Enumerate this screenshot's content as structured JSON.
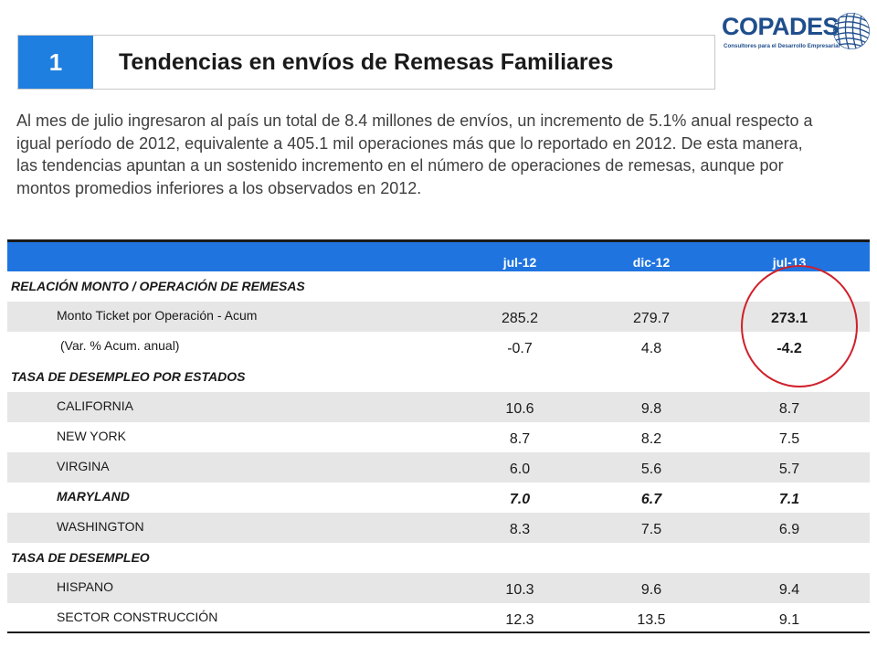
{
  "header": {
    "number": "1",
    "title": "Tendencias en envíos de Remesas Familiares"
  },
  "logo": {
    "name": "COPADES",
    "tagline": "Consultores para el Desarrollo Empresarial",
    "color": "#1f4e8c"
  },
  "intro": "Al mes de julio ingresaron al país un total de 8.4 millones de envíos, un incremento de 5.1% anual respecto a  igual período de 2012, equivalente a 405.1 mil operaciones más que lo reportado en 2012.  De esta manera, las tendencias apuntan a un sostenido incremento en el número de operaciones de remesas, aunque por montos promedios inferiores a los observados en 2012.",
  "table": {
    "columns": [
      "jul-12",
      "dic-12",
      "jul-13"
    ],
    "sections": [
      {
        "title": "RELACIÓN MONTO / OPERACIÓN DE REMESAS",
        "rows": [
          {
            "label": "Monto Ticket por Operación - Acum",
            "values": [
              "285.2",
              "279.7",
              "273.1"
            ]
          },
          {
            "label": " (Var. % Acum. anual)",
            "values": [
              "-0.7",
              "4.8",
              "-4.2"
            ]
          }
        ]
      },
      {
        "title": "TASA DE DESEMPLEO POR ESTADOS",
        "rows": [
          {
            "label": "CALIFORNIA",
            "values": [
              "10.6",
              "9.8",
              "8.7"
            ]
          },
          {
            "label": "NEW YORK",
            "values": [
              "8.7",
              "8.2",
              "7.5"
            ]
          },
          {
            "label": "VIRGINA",
            "values": [
              "6.0",
              "5.6",
              "5.7"
            ]
          },
          {
            "label": "MARYLAND",
            "values": [
              "7.0",
              "6.7",
              "7.1"
            ]
          },
          {
            "label": "WASHINGTON",
            "values": [
              "8.3",
              "7.5",
              "6.9"
            ]
          }
        ]
      },
      {
        "title": "TASA DE DESEMPLEO",
        "rows": [
          {
            "label": "HISPANO",
            "values": [
              "10.3",
              "9.6",
              "9.4"
            ]
          },
          {
            "label": "SECTOR CONSTRUCCIÓN",
            "values": [
              "12.3",
              "13.5",
              "9.1"
            ]
          }
        ]
      }
    ]
  },
  "colors": {
    "accent_blue": "#1f74e0",
    "number_box": "#1e7fe0",
    "highlight_circle": "#d0202a",
    "row_shade": "#e6e6e6"
  }
}
